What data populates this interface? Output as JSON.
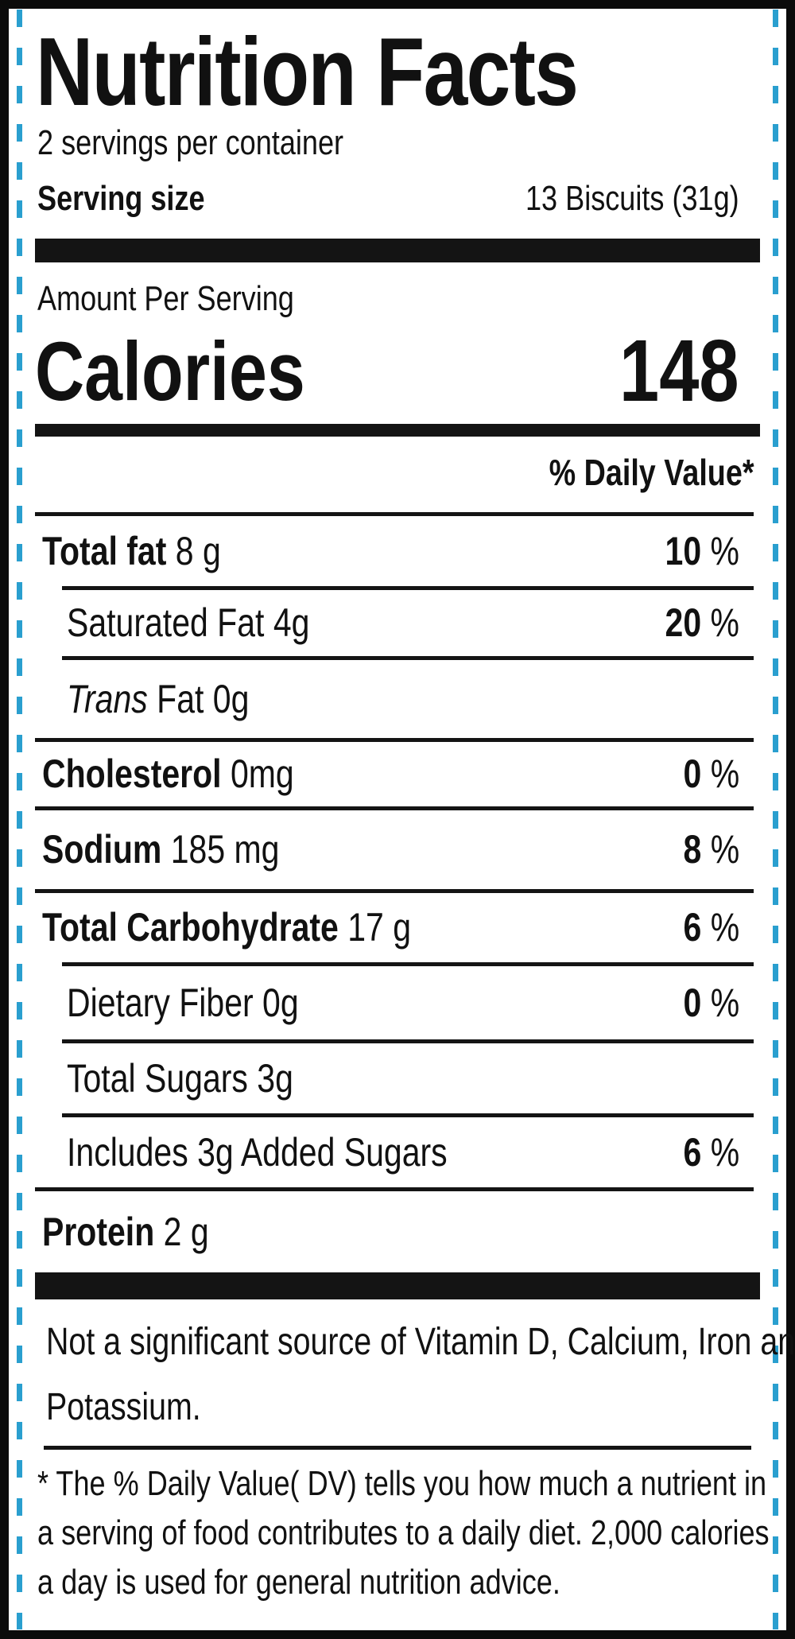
{
  "label": {
    "title": "Nutrition Facts",
    "servings_per_container": "2 servings per container",
    "serving_size_label": "Serving size",
    "serving_size_value": "13 Biscuits (31g)",
    "amount_per_serving": "Amount Per Serving",
    "calories_label": "Calories",
    "calories_value": "148",
    "daily_value_header": "% Daily Value*"
  },
  "nutrients": [
    {
      "name": "Total fat",
      "amount": " 8 g",
      "pct": "10",
      "unit": " %",
      "bold": true
    },
    {
      "name": "Saturated Fat 4g",
      "amount": "",
      "pct": "20",
      "unit": " %",
      "bold": false
    },
    {
      "name": "Trans",
      "amount": " Fat 0g",
      "pct": "",
      "unit": "",
      "bold": false
    },
    {
      "name": "Cholesterol",
      "amount": " 0mg",
      "pct": "0",
      "unit": " %",
      "bold": true
    },
    {
      "name": "Sodium",
      "amount": " 185 mg",
      "pct": "8",
      "unit": " %",
      "bold": true
    },
    {
      "name": "Total Carbohydrate",
      "amount": " 17 g",
      "pct": "6",
      "unit": " %",
      "bold": true
    },
    {
      "name": "Dietary Fiber 0g",
      "amount": "",
      "pct": "0",
      "unit": " %",
      "bold": false
    },
    {
      "name": "Total Sugars 3g",
      "amount": "",
      "pct": "",
      "unit": "",
      "bold": false
    },
    {
      "name": "Includes 3g Added Sugars",
      "amount": "",
      "pct": "6",
      "unit": " %",
      "bold": false
    },
    {
      "name": "Protein",
      "amount": " 2 g",
      "pct": "",
      "unit": "",
      "bold": true
    }
  ],
  "footnote": {
    "line1": "Not a significant source of Vitamin D, Calcium, Iron and",
    "line2": "Potassium."
  },
  "disclaimer": {
    "line1": "* The % Daily Value( DV) tells you how much a nutrient in",
    "line2": "a serving of food contributes to a daily diet. 2,000 calories",
    "line3": "a day is used for general nutrition advice."
  },
  "colors": {
    "border": "#0b0b0b",
    "dash_accent": "#2a9fcf",
    "text": "#111111"
  }
}
